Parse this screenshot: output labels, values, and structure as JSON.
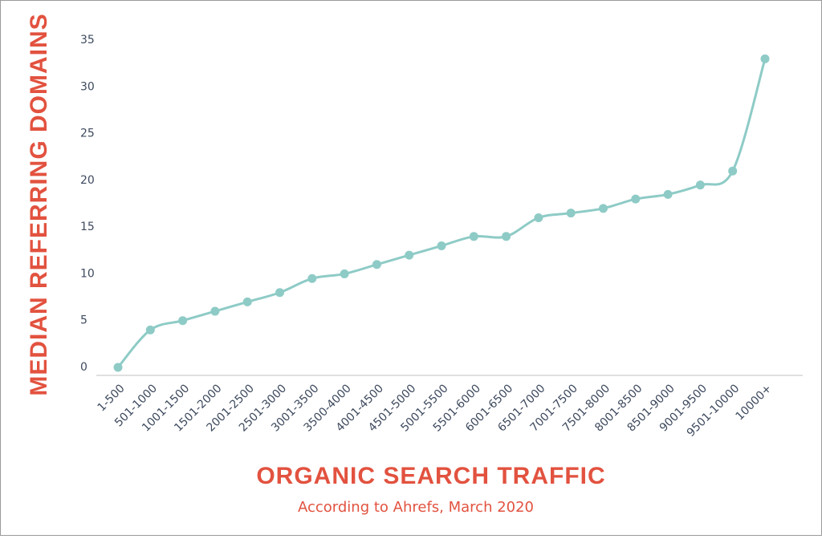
{
  "chart_data": {
    "type": "line",
    "y_label": "MEDIAN REFERRING DOMAINS",
    "x_label": "ORGANIC SEARCH TRAFFIC",
    "subtitle": "According to Ahrefs, March 2020",
    "categories": [
      "1-500",
      "501-1000",
      "1001-1500",
      "1501-2000",
      "2001-2500",
      "2501-3000",
      "3001-3500",
      "3500-4000",
      "4001-4500",
      "4501-5000",
      "5001-5500",
      "5501-6000",
      "6001-6500",
      "6501-7000",
      "7001-7500",
      "7501-8000",
      "8001-8500",
      "8501-9000",
      "9001-9500",
      "9501-10000",
      "10000+"
    ],
    "values": [
      0,
      4,
      5,
      6,
      7,
      8,
      9.5,
      10,
      11,
      12,
      13,
      14,
      14,
      16,
      16.5,
      17,
      18,
      18.5,
      19.5,
      21,
      33
    ],
    "color": "#8ecbc6",
    "ylim": [
      0,
      35
    ],
    "yticks": [
      0,
      5,
      10,
      15,
      20,
      25,
      30,
      35
    ],
    "smooth": true
  }
}
